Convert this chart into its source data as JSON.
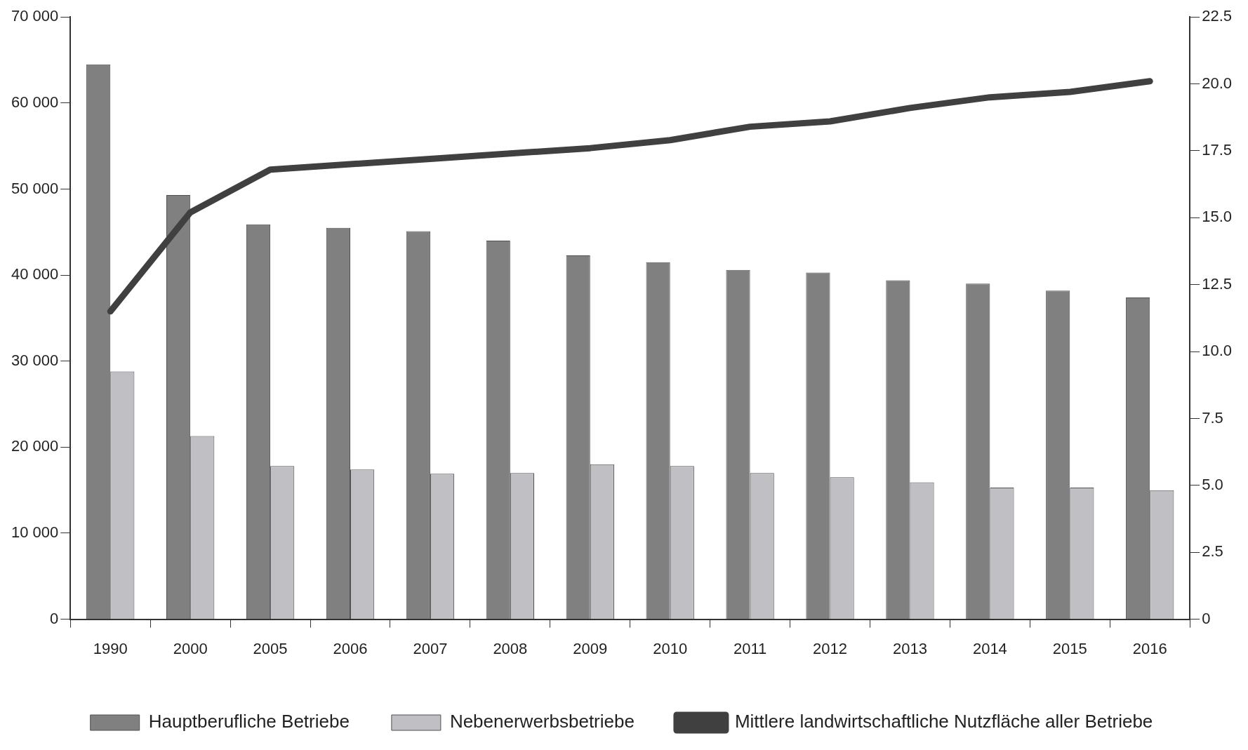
{
  "chart_data": {
    "type": "bar",
    "categories": [
      "1990",
      "2000",
      "2005",
      "2006",
      "2007",
      "2008",
      "2009",
      "2010",
      "2011",
      "2012",
      "2013",
      "2014",
      "2015",
      "2016"
    ],
    "series": [
      {
        "name": "Hauptberufliche Betriebe",
        "color": "#808080",
        "values": [
          64500,
          49300,
          45900,
          45500,
          45100,
          44000,
          42300,
          41500,
          40600,
          40300,
          39400,
          39000,
          38200,
          37400
        ]
      },
      {
        "name": "Nebenerwerbsbetriebe",
        "color": "#c0c0c4",
        "values": [
          28800,
          21300,
          17800,
          17400,
          16900,
          17000,
          18000,
          17800,
          17000,
          16500,
          15900,
          15300,
          15300,
          15000
        ]
      },
      {
        "name": "Mittlere landwirtschaftliche Nutzfläche aller Betriebe",
        "type": "line",
        "axis": "y2",
        "color": "#404040",
        "values": [
          11.5,
          15.2,
          16.8,
          17.0,
          17.2,
          17.4,
          17.6,
          17.9,
          18.4,
          18.6,
          19.1,
          19.5,
          19.7,
          20.1
        ]
      }
    ],
    "ylim": [
      0,
      70000
    ],
    "yticks": [
      0,
      {
        "value": 10000,
        "label": "10 000"
      },
      {
        "value": 20000,
        "label": "20 000"
      },
      {
        "value": 30000,
        "label": "30 000"
      },
      {
        "value": 40000,
        "label": "40 000"
      },
      {
        "value": 50000,
        "label": "50 000"
      },
      {
        "value": 60000,
        "label": "60 000"
      },
      {
        "value": 70000,
        "label": "70 000"
      }
    ],
    "y2lim": [
      0,
      22.5
    ],
    "y2ticks": [
      0,
      {
        "value": 2.5,
        "label": "2.5"
      },
      {
        "value": 5,
        "label": "5.0"
      },
      {
        "value": 7.5,
        "label": "7.5"
      },
      {
        "value": 10,
        "label": "10.0"
      },
      {
        "value": 12.5,
        "label": "12.5"
      },
      {
        "value": 15,
        "label": "15.0"
      },
      {
        "value": 17.5,
        "label": "17.5"
      },
      {
        "value": 20,
        "label": "20.0"
      },
      {
        "value": 22.5,
        "label": "22.5"
      }
    ],
    "grid": false,
    "legend": "bottom",
    "marker": "none",
    "line_style": "solid"
  }
}
